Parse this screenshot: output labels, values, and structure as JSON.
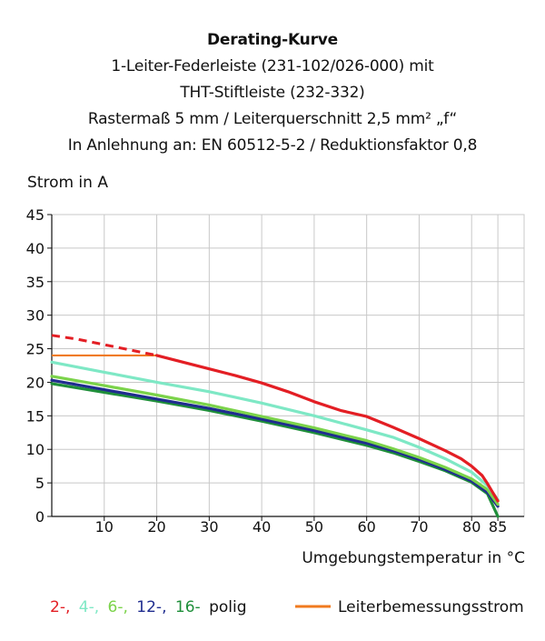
{
  "chart_data": {
    "type": "line",
    "title": "Derating-Kurve",
    "subtitle_lines": [
      "1-Leiter-Federleiste (231-102/026-000) mit",
      "THT-Stiftleiste (232-332)",
      "Rastermaß 5 mm / Leiterquerschnitt 2,5 mm² „f“",
      "In Anlehnung an: EN 60512-5-2 / Reduktionsfaktor 0,8"
    ],
    "ylabel": "Strom in A",
    "xlabel": "Umgebungstemperatur in °C",
    "xlim": [
      0,
      90
    ],
    "ylim": [
      0,
      45
    ],
    "x_ticks": [
      "10",
      "20",
      "30",
      "40",
      "50",
      "60",
      "70",
      "80",
      "85"
    ],
    "x_tick_values": [
      10,
      20,
      30,
      40,
      50,
      60,
      70,
      80,
      85
    ],
    "y_ticks": [
      "0",
      "5",
      "10",
      "15",
      "20",
      "25",
      "30",
      "35",
      "40",
      "45"
    ],
    "y_tick_values": [
      0,
      5,
      10,
      15,
      20,
      25,
      30,
      35,
      40,
      45
    ],
    "grid": true,
    "series": [
      {
        "name": "2-",
        "color": "#e31e24",
        "dashed_segment": {
          "x": [
            0,
            5,
            10,
            15,
            20
          ],
          "y": [
            27,
            26.4,
            25.6,
            24.8,
            24
          ]
        },
        "x": [
          20,
          25,
          30,
          35,
          40,
          45,
          50,
          55,
          60,
          65,
          70,
          75,
          78,
          80,
          82,
          83,
          84,
          85
        ],
        "y": [
          24,
          23,
          22,
          21,
          19.9,
          18.6,
          17.1,
          15.8,
          14.9,
          13.3,
          11.6,
          9.8,
          8.6,
          7.5,
          6.1,
          4.9,
          3.6,
          2.3
        ]
      },
      {
        "name": "4-",
        "color": "#7ee8c5",
        "x": [
          0,
          10,
          20,
          30,
          40,
          50,
          60,
          65,
          70,
          75,
          80,
          83,
          85
        ],
        "y": [
          23,
          21.5,
          20,
          18.6,
          16.9,
          15,
          12.9,
          11.8,
          10.3,
          8.6,
          6.6,
          4.6,
          2.5
        ]
      },
      {
        "name": "6-",
        "color": "#7bd34a",
        "x": [
          0,
          10,
          20,
          30,
          40,
          50,
          60,
          65,
          70,
          75,
          80,
          83,
          85
        ],
        "y": [
          20.9,
          19.5,
          18.1,
          16.6,
          14.9,
          13.2,
          11.3,
          10.1,
          8.8,
          7.3,
          5.6,
          4,
          1.8
        ]
      },
      {
        "name": "12-",
        "color": "#1f2c8f",
        "x": [
          0,
          10,
          20,
          30,
          40,
          50,
          60,
          65,
          70,
          75,
          80,
          83,
          85
        ],
        "y": [
          20.3,
          18.9,
          17.5,
          16.1,
          14.5,
          12.8,
          10.9,
          9.8,
          8.5,
          7,
          5.3,
          3.6,
          1.5
        ]
      },
      {
        "name": "16-",
        "color": "#1f8f3a",
        "x": [
          0,
          10,
          20,
          30,
          40,
          50,
          60,
          65,
          70,
          75,
          80,
          83,
          85
        ],
        "y": [
          19.8,
          18.5,
          17.2,
          15.8,
          14.2,
          12.5,
          10.6,
          9.5,
          8.2,
          6.8,
          5.1,
          3.4,
          0
        ]
      }
    ],
    "rated_current": {
      "color": "#f07a1e",
      "value": 24,
      "x_range": [
        0,
        20
      ]
    },
    "legend": {
      "placement": "bottom",
      "items": [
        {
          "text": "2-,",
          "color": "#e31e24"
        },
        {
          "text": "4-,",
          "color": "#7ee8c5"
        },
        {
          "text": "6-,",
          "color": "#7bd34a"
        },
        {
          "text": "12-,",
          "color": "#1f2c8f"
        },
        {
          "text": "16-",
          "color": "#1f8f3a"
        },
        {
          "text": "polig",
          "color": "#111111"
        }
      ],
      "rated_label": "Leiterbemessungsstrom"
    }
  }
}
